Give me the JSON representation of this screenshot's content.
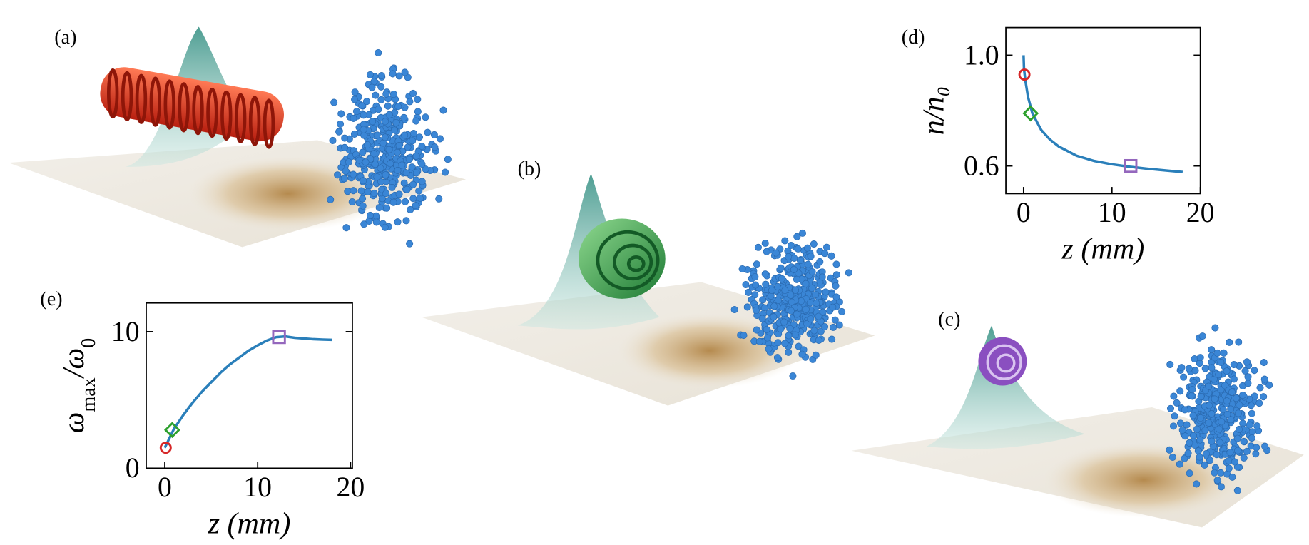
{
  "panels": [
    "(a)",
    "(b)",
    "(c)"
  ],
  "chart_data": [
    {
      "type": "line",
      "label": "(d)",
      "xlabel": "z (mm)",
      "ylabel": "n/n₀",
      "xlim": [
        -2,
        20
      ],
      "ylim": [
        0.5,
        1.1
      ],
      "xticks": [
        0,
        10,
        20
      ],
      "yticks": [
        0.6,
        {
          "value": 1.0,
          "label": "1.0"
        }
      ],
      "series": [
        {
          "color": "#2a7fba",
          "x": [
            0,
            0.05,
            0.2,
            0.5,
            1,
            2,
            3,
            4,
            6,
            8,
            10,
            12,
            14,
            16,
            18
          ],
          "values": [
            1.0,
            0.95,
            0.91,
            0.85,
            0.79,
            0.73,
            0.695,
            0.67,
            0.637,
            0.618,
            0.606,
            0.597,
            0.59,
            0.584,
            0.578
          ]
        }
      ],
      "markers": [
        {
          "shape": "circle",
          "color": "#d62728",
          "x": 0.1,
          "y": 0.93
        },
        {
          "shape": "diamond",
          "color": "#2ca02c",
          "x": 0.8,
          "y": 0.79
        },
        {
          "shape": "square",
          "color": "#9467bd",
          "x": 12.1,
          "y": 0.6
        }
      ]
    },
    {
      "type": "line",
      "label": "(e)",
      "xlabel": "z (mm)",
      "ylabel": [
        "ω",
        "max",
        "/ω",
        "0"
      ],
      "xlim": [
        -2,
        20.2
      ],
      "ylim": [
        0,
        12.1
      ],
      "xticks": [
        0,
        10,
        20
      ],
      "yticks": [
        0,
        10
      ],
      "series": [
        {
          "color": "#2a7fba",
          "x": [
            0,
            0.5,
            1,
            2,
            3,
            4,
            5,
            6,
            7,
            8,
            9,
            10,
            11,
            12,
            13,
            14,
            15,
            16,
            17,
            18
          ],
          "values": [
            1.5,
            2.2,
            2.9,
            3.9,
            4.8,
            5.6,
            6.3,
            7.0,
            7.6,
            8.1,
            8.6,
            9.0,
            9.35,
            9.6,
            9.65,
            9.55,
            9.5,
            9.45,
            9.42,
            9.4
          ]
        }
      ],
      "markers": [
        {
          "shape": "circle",
          "color": "#d62728",
          "x": 0.1,
          "y": 1.5
        },
        {
          "shape": "diamond",
          "color": "#2ca02c",
          "x": 0.8,
          "y": 2.8
        },
        {
          "shape": "square",
          "color": "#9467bd",
          "x": 12.3,
          "y": 9.6
        }
      ]
    }
  ]
}
